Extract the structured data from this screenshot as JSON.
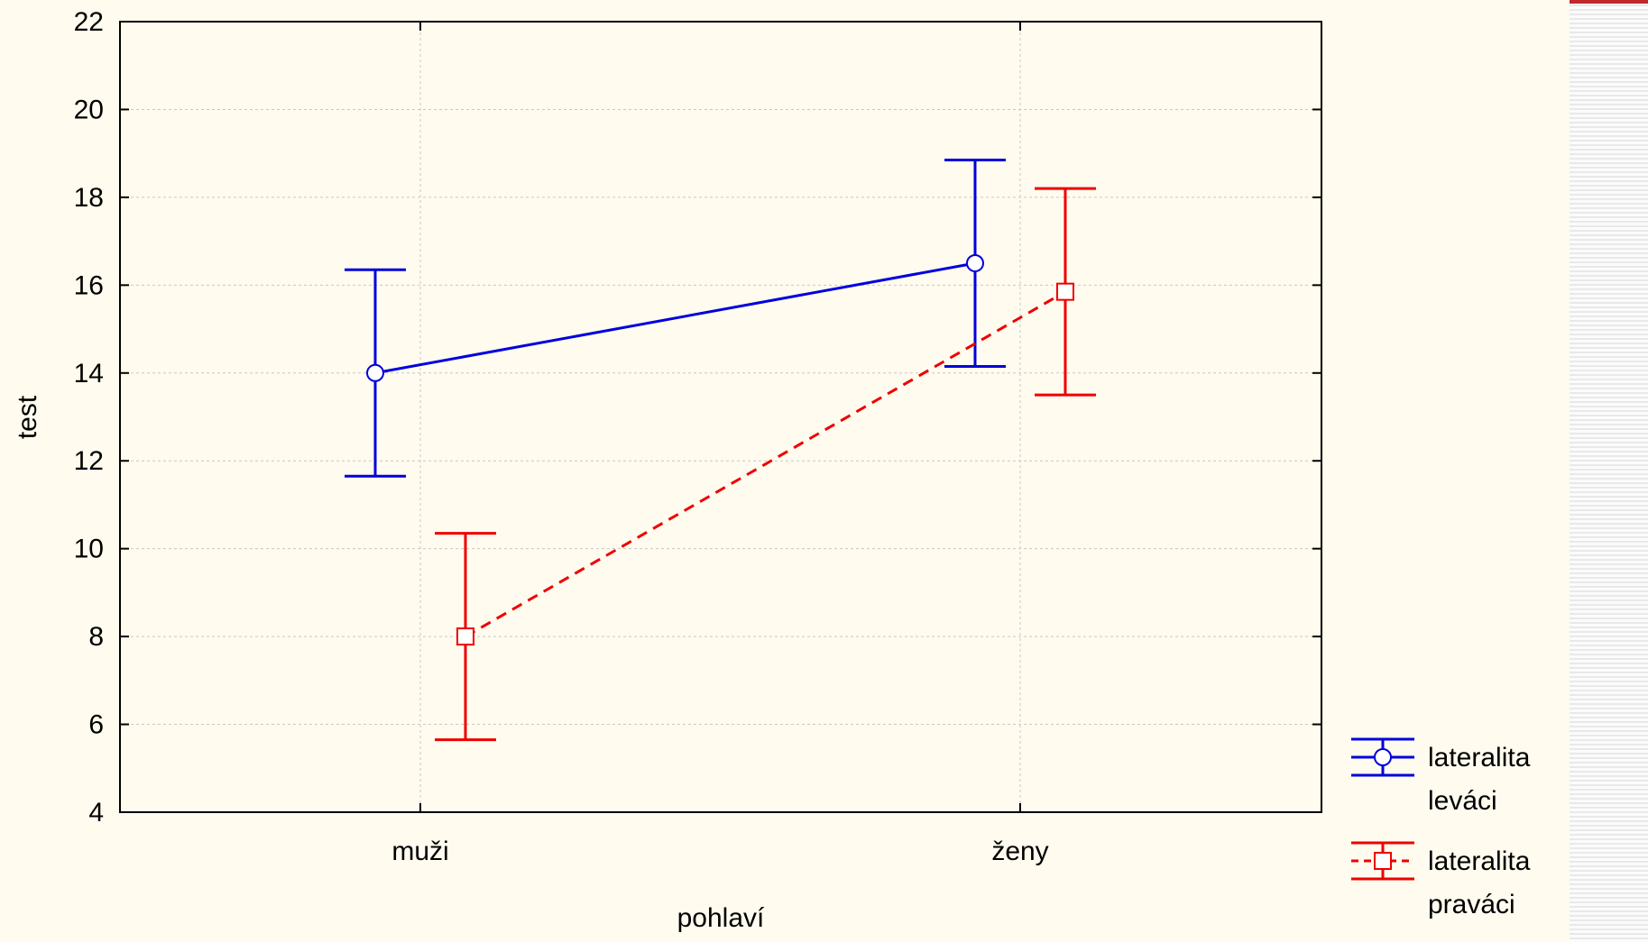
{
  "colors": {
    "background": "#fffbef",
    "series_1": "#0000dd",
    "series_2": "#ee0000",
    "grid": "#c8c8c8",
    "strip_accent": "#c0282d"
  },
  "chart_data": {
    "type": "line",
    "xlabel": "pohlaví",
    "ylabel": "test",
    "categories": [
      "muži",
      "ženy"
    ],
    "ylim": [
      4,
      22
    ],
    "yticks": [
      4,
      6,
      8,
      10,
      12,
      14,
      16,
      18,
      20,
      22
    ],
    "grid": true,
    "legend_position": "bottom-right",
    "series": [
      {
        "name": "lateralita leváci",
        "legend_lines": [
          "lateralita",
          "leváci"
        ],
        "marker": "circle",
        "line_style": "solid",
        "color": "#0000dd",
        "values": [
          14.0,
          16.5
        ],
        "error_low": [
          11.65,
          14.15
        ],
        "error_high": [
          16.35,
          18.85
        ]
      },
      {
        "name": "lateralita praváci",
        "legend_lines": [
          "lateralita",
          "praváci"
        ],
        "marker": "square",
        "line_style": "dashed",
        "color": "#ee0000",
        "values": [
          8.0,
          15.85
        ],
        "error_low": [
          5.65,
          13.5
        ],
        "error_high": [
          10.35,
          18.2
        ]
      }
    ]
  }
}
